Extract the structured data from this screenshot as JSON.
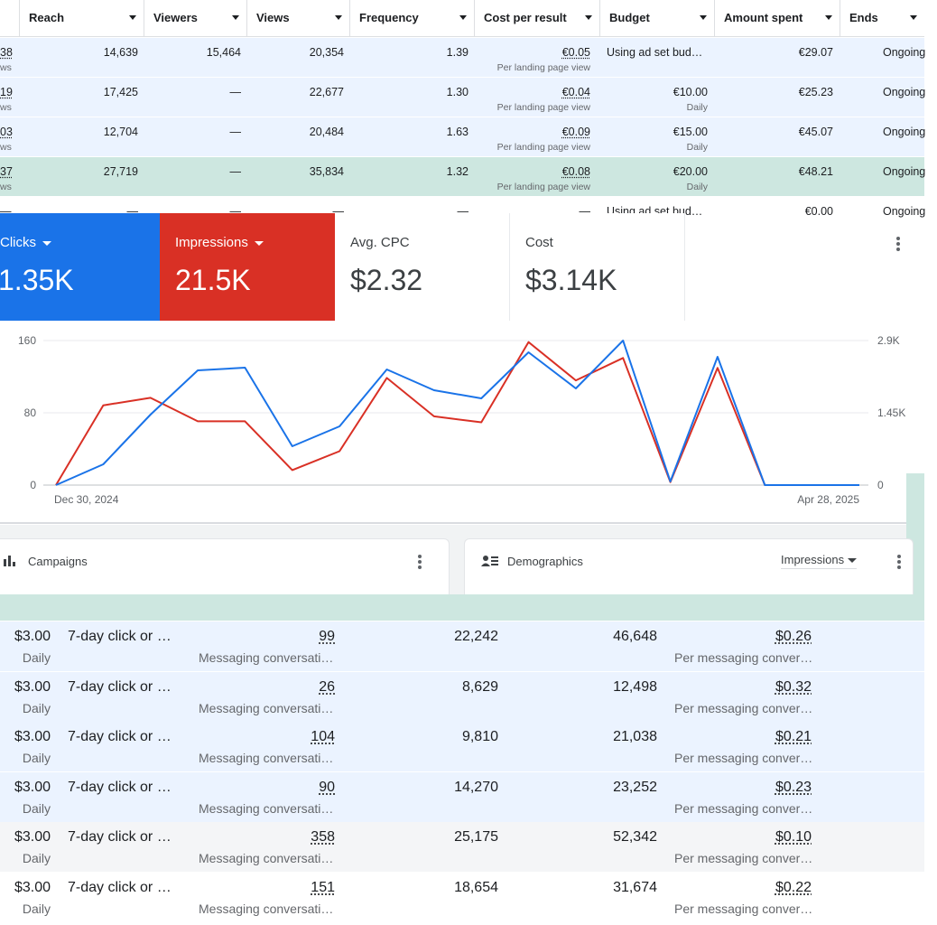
{
  "ads_table": {
    "headers": [
      "Reach",
      "Viewers",
      "Views",
      "Frequency",
      "Cost per result",
      "Budget",
      "Amount spent",
      "Ends"
    ],
    "rows": [
      {
        "id_fragment": "38",
        "id_sub": "ws",
        "reach": "14,639",
        "viewers": "15,464",
        "views": "20,354",
        "frequency": "1.39",
        "cost": "€0.05",
        "cost_sub": "Per landing page view",
        "budget": "Using ad set bud…",
        "budget_sub": "",
        "spent": "€29.07",
        "ends": "Ongoing"
      },
      {
        "id_fragment": "19",
        "id_sub": "ws",
        "reach": "17,425",
        "viewers": "—",
        "views": "22,677",
        "frequency": "1.30",
        "cost": "€0.04",
        "cost_sub": "Per landing page view",
        "budget": "€10.00",
        "budget_sub": "Daily",
        "spent": "€25.23",
        "ends": "Ongoing"
      },
      {
        "id_fragment": "03",
        "id_sub": "ws",
        "reach": "12,704",
        "viewers": "—",
        "views": "20,484",
        "frequency": "1.63",
        "cost": "€0.09",
        "cost_sub": "Per landing page view",
        "budget": "€15.00",
        "budget_sub": "Daily",
        "spent": "€45.07",
        "ends": "Ongoing"
      },
      {
        "id_fragment": "37",
        "id_sub": "ws",
        "reach": "27,719",
        "viewers": "—",
        "views": "35,834",
        "frequency": "1.32",
        "cost": "€0.08",
        "cost_sub": "Per landing page view",
        "budget": "€20.00",
        "budget_sub": "Daily",
        "spent": "€48.21",
        "ends": "Ongoing"
      },
      {
        "id_fragment": "—",
        "id_sub": "",
        "reach": "—",
        "viewers": "—",
        "views": "—",
        "frequency": "—",
        "cost": "—",
        "cost_sub": "",
        "budget": "Using ad set bud…",
        "budget_sub": "",
        "spent": "€0.00",
        "ends": "Ongoing"
      }
    ]
  },
  "kpis": {
    "clicks": {
      "label": "Clicks",
      "value": "1.35K"
    },
    "impressions": {
      "label": "Impressions",
      "value": "21.5K"
    },
    "avg_cpc": {
      "label": "Avg. CPC",
      "value": "$2.32"
    },
    "cost": {
      "label": "Cost",
      "value": "$3.14K"
    }
  },
  "chart_data": {
    "type": "line",
    "x_start_label": "Dec 30, 2024",
    "x_end_label": "Apr 28, 2025",
    "left_axis": {
      "ticks": [
        "0",
        "80",
        "160"
      ],
      "min": 0,
      "max": 160
    },
    "right_axis": {
      "ticks": [
        "0",
        "1.45K",
        "2.9K"
      ],
      "min": 0,
      "max": 2900
    },
    "points": 18,
    "series": [
      {
        "name": "Clicks",
        "axis": "left",
        "color": "#1a73e8",
        "values": [
          0,
          23,
          78,
          127,
          130,
          43,
          65,
          128,
          105,
          96,
          147,
          107,
          160,
          4,
          142,
          0,
          0,
          0
        ]
      },
      {
        "name": "Impressions",
        "axis": "right",
        "color": "#d93025",
        "values": [
          0,
          1600,
          1750,
          1280,
          1280,
          300,
          680,
          2150,
          1380,
          1260,
          2870,
          2100,
          2550,
          60,
          2350,
          0,
          0,
          0
        ]
      }
    ],
    "grid": true
  },
  "cards": {
    "campaigns": {
      "title": "Campaigns"
    },
    "demographics": {
      "title": "Demographics",
      "selector": "Impressions"
    }
  },
  "bottom_table": {
    "rows": [
      {
        "budget": "$3.00",
        "budget_sub": "Daily",
        "attribution": "7-day click or …",
        "results": "99",
        "results_sub": "Messaging conversati…",
        "reach": "22,242",
        "impressions": "46,648",
        "cost": "$0.26",
        "cost_sub": "Per messaging conver…"
      },
      {
        "budget": "$3.00",
        "budget_sub": "Daily",
        "attribution": "7-day click or …",
        "results": "26",
        "results_sub": "Messaging conversati…",
        "reach": "8,629",
        "impressions": "12,498",
        "cost": "$0.32",
        "cost_sub": "Per messaging conver…"
      },
      {
        "budget": "$3.00",
        "budget_sub": "Daily",
        "attribution": "7-day click or …",
        "results": "104",
        "results_sub": "Messaging conversati…",
        "reach": "9,810",
        "impressions": "21,038",
        "cost": "$0.21",
        "cost_sub": "Per messaging conver…"
      },
      {
        "budget": "$3.00",
        "budget_sub": "Daily",
        "attribution": "7-day click or …",
        "results": "90",
        "results_sub": "Messaging conversati…",
        "reach": "14,270",
        "impressions": "23,252",
        "cost": "$0.23",
        "cost_sub": "Per messaging conver…"
      },
      {
        "budget": "$3.00",
        "budget_sub": "Daily",
        "attribution": "7-day click or …",
        "results": "358",
        "results_sub": "Messaging conversati…",
        "reach": "25,175",
        "impressions": "52,342",
        "cost": "$0.10",
        "cost_sub": "Per messaging conver…"
      },
      {
        "budget": "$3.00",
        "budget_sub": "Daily",
        "attribution": "7-day click or …",
        "results": "151",
        "results_sub": "Messaging conversati…",
        "reach": "18,654",
        "impressions": "31,674",
        "cost": "$0.22",
        "cost_sub": "Per messaging conver…"
      }
    ]
  },
  "colors": {
    "clicks": "#1a73e8",
    "impressions": "#d93025",
    "row_blue": "#ebf3ff",
    "row_green": "#cde7e0"
  }
}
